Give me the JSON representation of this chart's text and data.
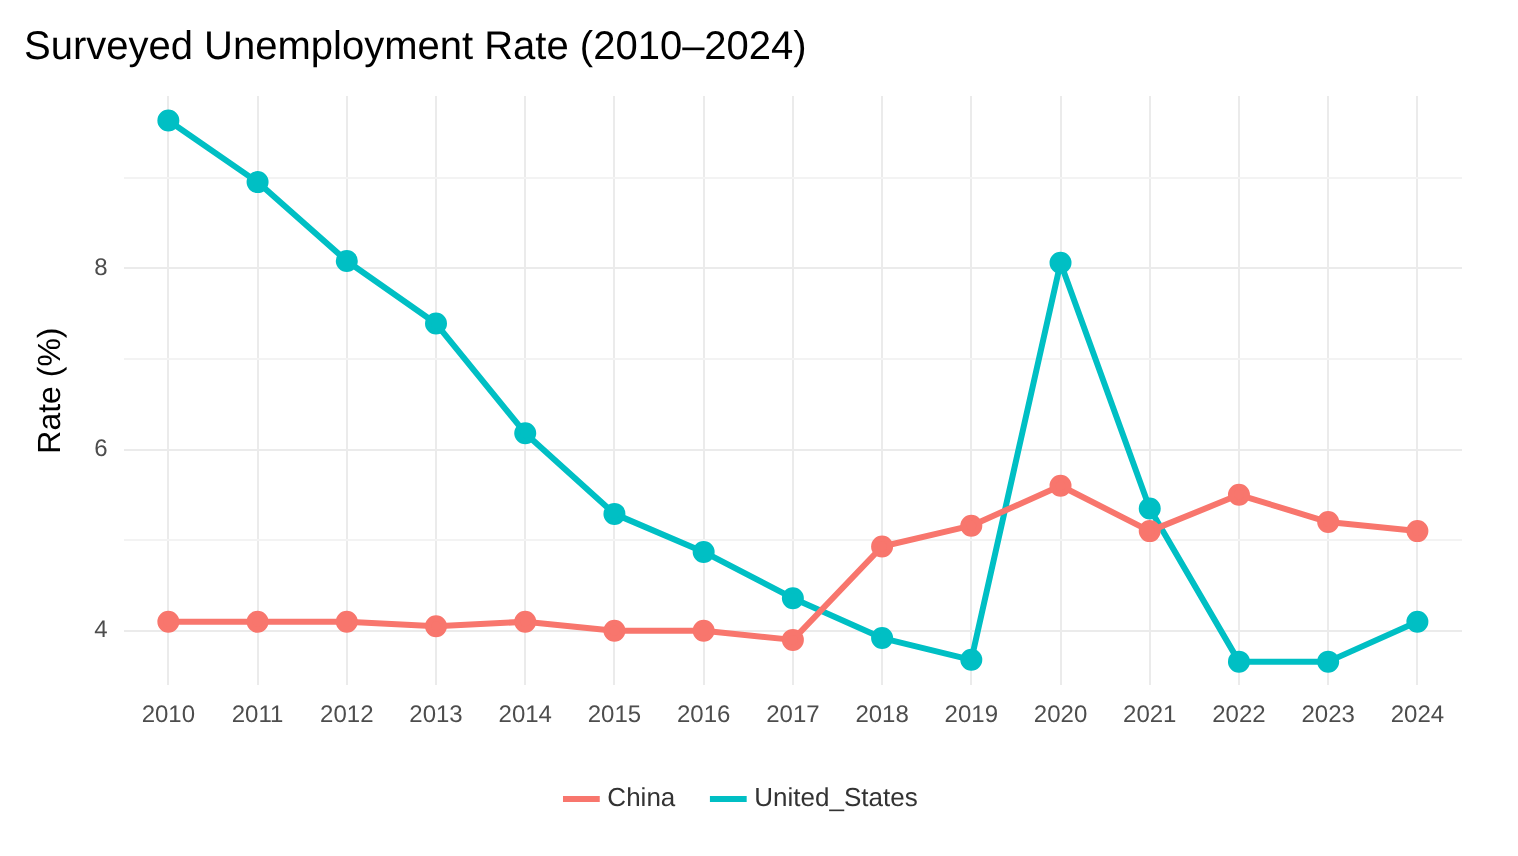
{
  "chart_data": {
    "type": "line",
    "title": "Surveyed Unemployment Rate (2010–2024)",
    "ylabel": "Rate (%)",
    "categories": [
      "2010",
      "2011",
      "2012",
      "2013",
      "2014",
      "2015",
      "2016",
      "2017",
      "2018",
      "2019",
      "2020",
      "2021",
      "2022",
      "2023",
      "2024"
    ],
    "series": [
      {
        "name": "China",
        "color": "#f8766d",
        "values": [
          4.1,
          4.1,
          4.1,
          4.05,
          4.1,
          4.0,
          4.0,
          3.9,
          4.93,
          5.16,
          5.6,
          5.1,
          5.5,
          5.2,
          5.1
        ]
      },
      {
        "name": "United_States",
        "color": "#00bfc4",
        "values": [
          9.63,
          8.95,
          8.08,
          7.39,
          6.18,
          5.29,
          4.87,
          4.36,
          3.92,
          3.68,
          8.06,
          5.35,
          3.66,
          3.66,
          4.1
        ]
      }
    ],
    "ylim": [
      3.4,
      9.9
    ],
    "yticks": [
      4,
      {
        "value": 5,
        "label": null
      },
      6,
      {
        "value": 7,
        "label": null
      },
      8,
      {
        "value": 9,
        "label": null
      }
    ],
    "grid": true,
    "legend": "bottom",
    "marker": "circle",
    "line_style": "solid"
  }
}
